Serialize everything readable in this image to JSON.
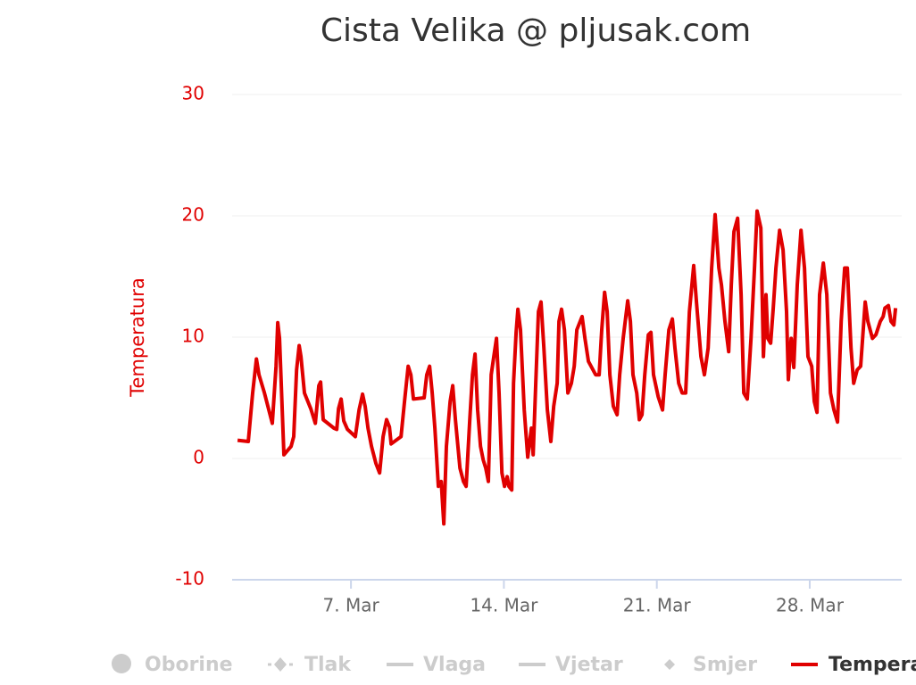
{
  "chart_data": {
    "type": "line",
    "title": "Cista Velika @ pljusak.com",
    "y_axis_label": "Temperatura",
    "xlim": [
      1.56,
      32.21
    ],
    "xticks": [
      {
        "value": 7,
        "label": "7. Mar"
      },
      {
        "value": 14,
        "label": "14. Mar"
      },
      {
        "value": 21,
        "label": "21. Mar"
      },
      {
        "value": 28,
        "label": "28. Mar"
      }
    ],
    "ylim": [
      -10,
      30
    ],
    "yticks": [
      -10,
      0,
      10,
      20,
      30
    ],
    "grid": true,
    "hidden_series": [
      "Oborine",
      "Tlak",
      "Vlaga",
      "Vjetar",
      "Smjer"
    ],
    "series": [
      {
        "name": "Temperatura",
        "color": "#e00000",
        "x": [
          1.81,
          2.3,
          2.5,
          2.67,
          2.79,
          3.04,
          3.4,
          3.57,
          3.65,
          3.73,
          3.93,
          4.26,
          4.38,
          4.51,
          4.63,
          4.71,
          4.87,
          5.16,
          5.37,
          5.53,
          5.61,
          5.73,
          6.22,
          6.35,
          6.43,
          6.55,
          6.67,
          6.84,
          7.2,
          7.37,
          7.53,
          7.65,
          7.78,
          7.94,
          8.14,
          8.31,
          8.47,
          8.63,
          8.76,
          8.84,
          9.29,
          9.45,
          9.62,
          9.74,
          9.86,
          10.35,
          10.47,
          10.6,
          10.72,
          10.84,
          11.0,
          11.13,
          11.25,
          11.37,
          11.54,
          11.66,
          11.78,
          11.99,
          12.15,
          12.27,
          12.44,
          12.56,
          12.68,
          12.8,
          12.93,
          13.05,
          13.17,
          13.29,
          13.42,
          13.54,
          13.66,
          13.78,
          13.91,
          14.03,
          14.15,
          14.23,
          14.36,
          14.44,
          14.56,
          14.64,
          14.76,
          14.93,
          15.09,
          15.26,
          15.34,
          15.46,
          15.58,
          15.7,
          15.83,
          15.99,
          16.15,
          16.28,
          16.44,
          16.52,
          16.64,
          16.77,
          16.93,
          17.09,
          17.22,
          17.34,
          17.58,
          17.71,
          17.87,
          18.2,
          18.36,
          18.48,
          18.61,
          18.73,
          18.85,
          19.01,
          19.18,
          19.3,
          19.46,
          19.67,
          19.79,
          19.91,
          20.08,
          20.2,
          20.32,
          20.45,
          20.61,
          20.73,
          20.85,
          21.06,
          21.26,
          21.38,
          21.55,
          21.71,
          21.83,
          22.0,
          22.16,
          22.32,
          22.49,
          22.69,
          22.82,
          23.02,
          23.18,
          23.35,
          23.51,
          23.67,
          23.84,
          23.96,
          24.12,
          24.29,
          24.41,
          24.53,
          24.7,
          24.86,
          24.98,
          25.14,
          25.31,
          25.47,
          25.59,
          25.76,
          25.88,
          26.0,
          26.08,
          26.21,
          26.33,
          26.45,
          26.62,
          26.78,
          26.94,
          27.02,
          27.15,
          27.27,
          27.43,
          27.6,
          27.76,
          27.92,
          28.09,
          28.21,
          28.33,
          28.45,
          28.62,
          28.78,
          28.95,
          29.11,
          29.27,
          29.44,
          29.6,
          29.72,
          29.89,
          30.01,
          30.17,
          30.33,
          30.54,
          30.66,
          30.87,
          31.03,
          31.23,
          31.36,
          31.44,
          31.6,
          31.72,
          31.85,
          31.93
        ],
        "values": [
          1.5,
          1.4,
          5.4,
          8.2,
          6.9,
          5.4,
          2.9,
          7.6,
          11.2,
          9.9,
          0.3,
          1.0,
          1.8,
          7.3,
          9.3,
          8.4,
          5.4,
          4.1,
          2.9,
          6.0,
          6.3,
          3.2,
          2.5,
          2.4,
          4.1,
          4.9,
          3.1,
          2.4,
          1.8,
          4.0,
          5.3,
          4.3,
          2.5,
          1.0,
          -0.4,
          -1.2,
          1.8,
          3.2,
          2.6,
          1.2,
          1.8,
          4.7,
          7.6,
          6.9,
          4.9,
          5.0,
          6.9,
          7.6,
          5.4,
          2.5,
          -2.3,
          -1.9,
          -5.4,
          1.0,
          4.7,
          6.0,
          3.2,
          -0.8,
          -1.9,
          -2.3,
          3.2,
          6.9,
          8.6,
          4.0,
          1.0,
          -0.1,
          -0.8,
          -1.9,
          6.9,
          8.4,
          9.9,
          5.4,
          -1.2,
          -2.3,
          -1.5,
          -2.3,
          -2.6,
          6.2,
          10.4,
          12.3,
          10.6,
          4.0,
          0.1,
          2.5,
          0.3,
          6.2,
          12.1,
          12.9,
          9.1,
          4.0,
          1.4,
          4.3,
          6.2,
          11.3,
          12.3,
          10.6,
          5.4,
          6.2,
          7.6,
          10.6,
          11.7,
          9.9,
          8.0,
          6.9,
          6.9,
          10.6,
          13.7,
          12.1,
          6.9,
          4.3,
          3.6,
          6.9,
          9.9,
          13.0,
          11.3,
          6.9,
          5.4,
          3.2,
          3.6,
          6.9,
          10.2,
          10.4,
          6.9,
          5.1,
          4.0,
          6.9,
          10.6,
          11.5,
          9.1,
          6.2,
          5.4,
          5.4,
          12.1,
          15.9,
          12.8,
          8.4,
          6.9,
          9.1,
          15.7,
          20.1,
          15.7,
          14.3,
          11.3,
          8.8,
          14.3,
          18.7,
          19.8,
          13.5,
          5.4,
          4.9,
          9.9,
          15.7,
          20.4,
          19.0,
          8.4,
          13.5,
          9.9,
          9.5,
          12.4,
          15.7,
          18.8,
          17.2,
          12.1,
          6.5,
          9.9,
          7.5,
          14.3,
          18.8,
          15.7,
          8.4,
          7.6,
          4.7,
          3.8,
          13.5,
          16.1,
          13.5,
          5.4,
          4.0,
          3.0,
          11.3,
          15.7,
          15.7,
          9.1,
          6.2,
          7.3,
          7.6,
          12.9,
          11.3,
          9.9,
          10.2,
          11.3,
          11.7,
          12.4,
          12.6,
          11.3,
          11.0,
          12.4
        ]
      }
    ]
  }
}
